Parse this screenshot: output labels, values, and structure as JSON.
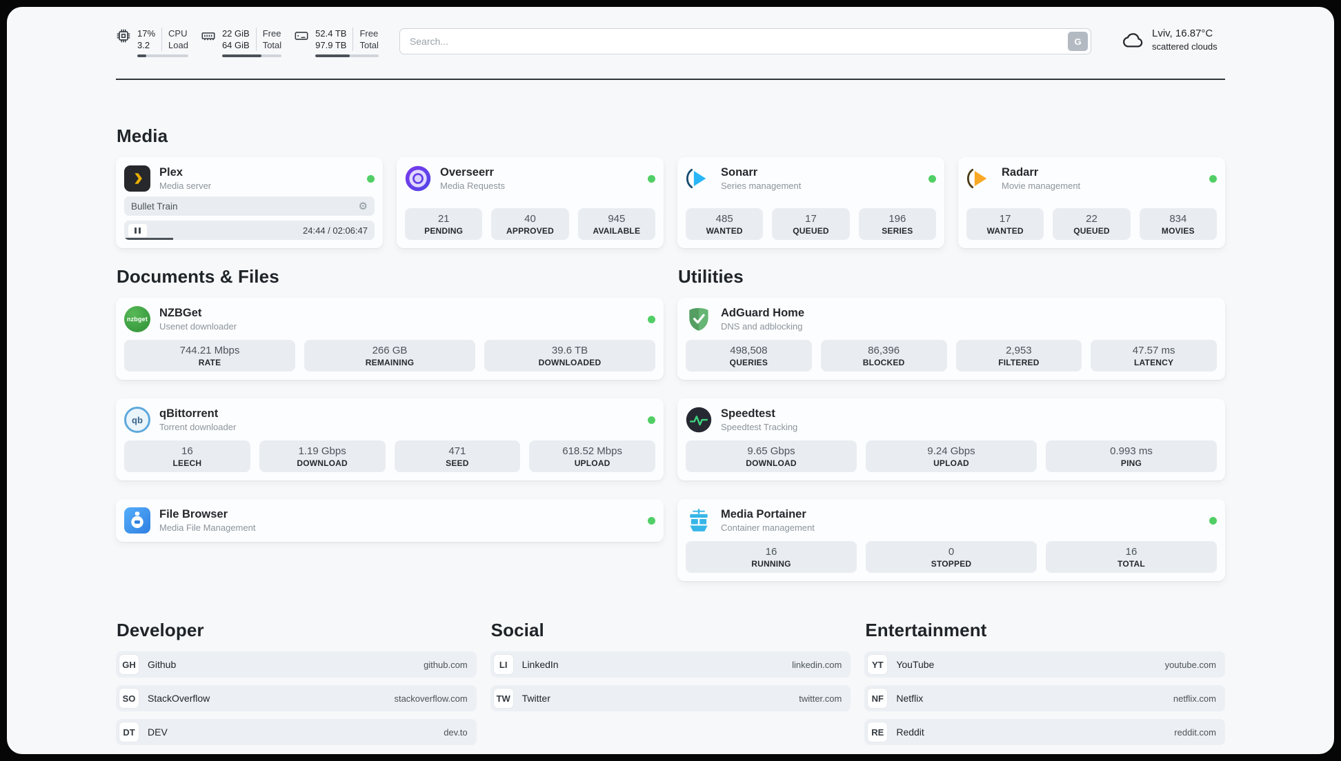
{
  "topbar": {
    "metrics": [
      {
        "id": "cpu",
        "value_top": "17%",
        "value_bottom": "3.2",
        "label_top": "CPU",
        "label_bottom": "Load",
        "progress_pct": 17
      },
      {
        "id": "ram",
        "value_top": "22 GiB",
        "value_bottom": "64 GiB",
        "label_top": "Free",
        "label_bottom": "Total",
        "progress_pct": 66
      },
      {
        "id": "disk",
        "value_top": "52.4 TB",
        "value_bottom": "97.9 TB",
        "label_top": "Free",
        "label_bottom": "Total",
        "progress_pct": 54
      }
    ],
    "search": {
      "placeholder": "Search...",
      "button_label": "G"
    },
    "weather": {
      "location": "Lviv, 16.87°C",
      "condition": "scattered clouds"
    }
  },
  "media": {
    "title": "Media",
    "plex": {
      "name": "Plex",
      "subtitle": "Media server",
      "online": true,
      "now_playing": {
        "title": "Bullet Train",
        "time": "24:44 / 02:06:47",
        "progress_pct": 19.5
      }
    },
    "overseerr": {
      "name": "Overseerr",
      "subtitle": "Media Requests",
      "online": true,
      "stats": [
        {
          "value": "21",
          "label": "PENDING"
        },
        {
          "value": "40",
          "label": "APPROVED"
        },
        {
          "value": "945",
          "label": "AVAILABLE"
        }
      ]
    },
    "sonarr": {
      "name": "Sonarr",
      "subtitle": "Series management",
      "online": true,
      "stats": [
        {
          "value": "485",
          "label": "WANTED"
        },
        {
          "value": "17",
          "label": "QUEUED"
        },
        {
          "value": "196",
          "label": "SERIES"
        }
      ]
    },
    "radarr": {
      "name": "Radarr",
      "subtitle": "Movie management",
      "online": true,
      "stats": [
        {
          "value": "17",
          "label": "WANTED"
        },
        {
          "value": "22",
          "label": "QUEUED"
        },
        {
          "value": "834",
          "label": "MOVIES"
        }
      ]
    }
  },
  "documents": {
    "title": "Documents & Files",
    "nzbget": {
      "name": "NZBGet",
      "subtitle": "Usenet downloader",
      "online": true,
      "stats": [
        {
          "value": "744.21 Mbps",
          "label": "RATE"
        },
        {
          "value": "266 GB",
          "label": "REMAINING"
        },
        {
          "value": "39.6 TB",
          "label": "DOWNLOADED"
        }
      ]
    },
    "qbittorrent": {
      "name": "qBittorrent",
      "subtitle": "Torrent downloader",
      "online": true,
      "stats": [
        {
          "value": "16",
          "label": "LEECH"
        },
        {
          "value": "1.19 Gbps",
          "label": "DOWNLOAD"
        },
        {
          "value": "471",
          "label": "SEED"
        },
        {
          "value": "618.52 Mbps",
          "label": "UPLOAD"
        }
      ]
    },
    "filebrowser": {
      "name": "File Browser",
      "subtitle": "Media File Management",
      "online": true
    }
  },
  "utilities": {
    "title": "Utilities",
    "adguard": {
      "name": "AdGuard Home",
      "subtitle": "DNS and adblocking",
      "stats": [
        {
          "value": "498,508",
          "label": "QUERIES"
        },
        {
          "value": "86,396",
          "label": "BLOCKED"
        },
        {
          "value": "2,953",
          "label": "FILTERED"
        },
        {
          "value": "47.57 ms",
          "label": "LATENCY"
        }
      ]
    },
    "speedtest": {
      "name": "Speedtest",
      "subtitle": "Speedtest Tracking",
      "stats": [
        {
          "value": "9.65 Gbps",
          "label": "DOWNLOAD"
        },
        {
          "value": "9.24 Gbps",
          "label": "UPLOAD"
        },
        {
          "value": "0.993 ms",
          "label": "PING"
        }
      ]
    },
    "portainer": {
      "name": "Media Portainer",
      "subtitle": "Container management",
      "online": true,
      "stats": [
        {
          "value": "16",
          "label": "RUNNING"
        },
        {
          "value": "0",
          "label": "STOPPED"
        },
        {
          "value": "16",
          "label": "TOTAL"
        }
      ]
    }
  },
  "bookmarks": {
    "developer": {
      "title": "Developer",
      "items": [
        {
          "abbr": "GH",
          "name": "Github",
          "url": "github.com"
        },
        {
          "abbr": "SO",
          "name": "StackOverflow",
          "url": "stackoverflow.com"
        },
        {
          "abbr": "DT",
          "name": "DEV",
          "url": "dev.to"
        }
      ]
    },
    "social": {
      "title": "Social",
      "items": [
        {
          "abbr": "LI",
          "name": "LinkedIn",
          "url": "linkedin.com"
        },
        {
          "abbr": "TW",
          "name": "Twitter",
          "url": "twitter.com"
        }
      ]
    },
    "entertainment": {
      "title": "Entertainment",
      "items": [
        {
          "abbr": "YT",
          "name": "YouTube",
          "url": "youtube.com"
        },
        {
          "abbr": "NF",
          "name": "Netflix",
          "url": "netflix.com"
        },
        {
          "abbr": "RE",
          "name": "Reddit",
          "url": "reddit.com"
        }
      ]
    }
  },
  "icons": {
    "gear": "⚙",
    "nzbget_logo_text": "nzbget",
    "qbittorrent_logo_text": "qb"
  },
  "colors": {
    "status_online": "#51cf66",
    "plex_yellow": "#ebaf00",
    "overseerr_purple": "#6d4fe0",
    "sonarr_blue": "#29b6f6",
    "radarr_amber": "#f9a825",
    "nzbget_green": "#3f9e43",
    "qbittorrent_blue": "#5da8dc",
    "filebrowser_blue": "#2f7fe0",
    "adguard_green": "#66b574",
    "speedtest_green": "#40d47e",
    "portainer_blue": "#36b6e8"
  }
}
